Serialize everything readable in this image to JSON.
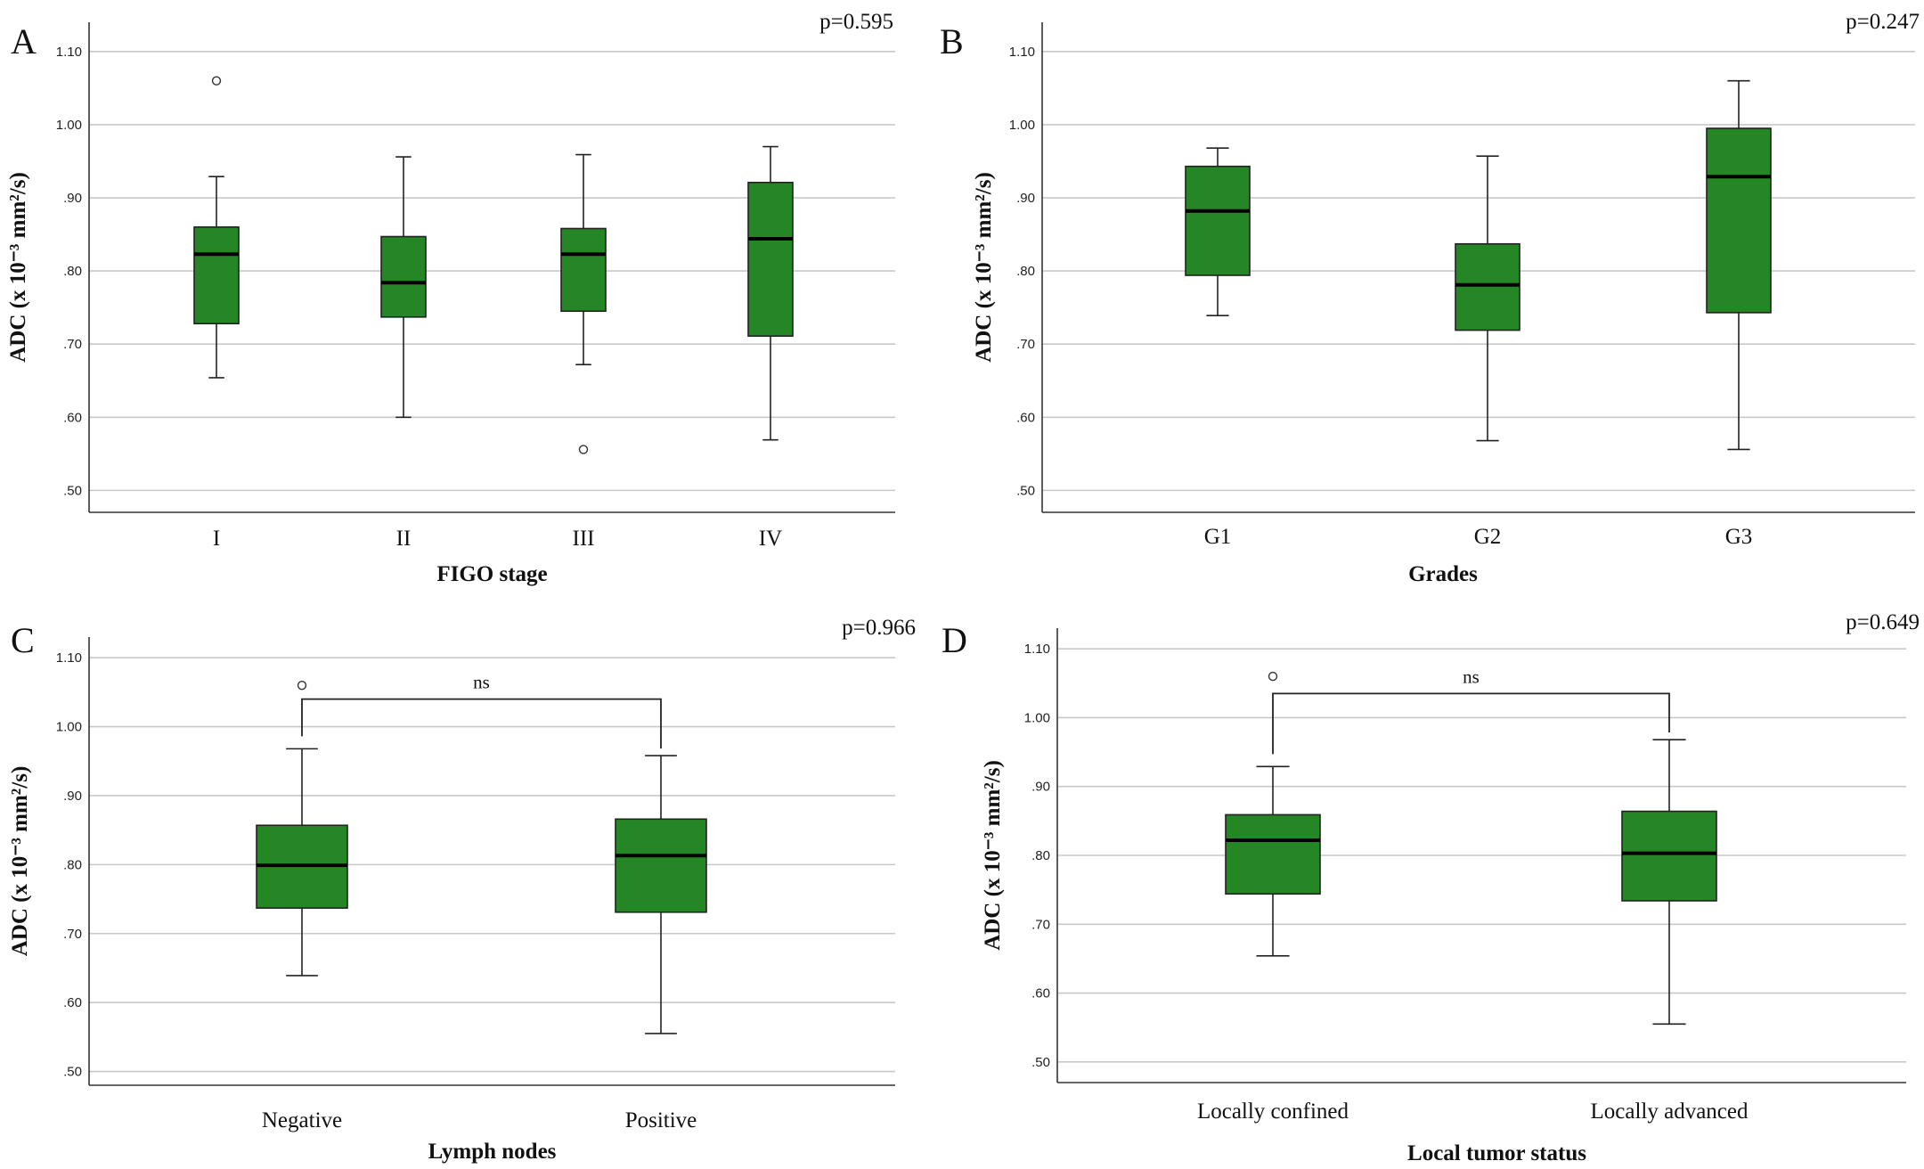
{
  "chart_data": [
    {
      "type": "box",
      "panel": "A",
      "p_value": "p=0.595",
      "xlabel": "FIGO stage",
      "ylabel": "ADC (x 10⁻³ mm²/s)",
      "ylim": [
        0.47,
        1.14
      ],
      "yticks": [
        0.5,
        0.6,
        0.7,
        0.8,
        0.9,
        1.0,
        1.1
      ],
      "ytick_labels": [
        ".50",
        ".60",
        ".70",
        ".80",
        ".90",
        "1.00",
        "1.10"
      ],
      "color": "#258625",
      "grid": true,
      "categories": [
        "I",
        "II",
        "III",
        "IV"
      ],
      "boxes": [
        {
          "min": 0.654,
          "q1": 0.728,
          "median": 0.823,
          "q3": 0.86,
          "max": 0.929,
          "outliers": [
            1.06
          ]
        },
        {
          "min": 0.6,
          "q1": 0.737,
          "median": 0.784,
          "q3": 0.847,
          "max": 0.956,
          "outliers": []
        },
        {
          "min": 0.672,
          "q1": 0.745,
          "median": 0.823,
          "q3": 0.858,
          "max": 0.959,
          "outliers": [
            0.556
          ]
        },
        {
          "min": 0.569,
          "q1": 0.711,
          "median": 0.844,
          "q3": 0.921,
          "max": 0.97,
          "outliers": []
        }
      ]
    },
    {
      "type": "box",
      "panel": "B",
      "p_value": "p=0.247",
      "xlabel": "Grades",
      "ylabel": "ADC (x 10⁻³ mm²/s)",
      "ylim": [
        0.47,
        1.14
      ],
      "yticks": [
        0.5,
        0.6,
        0.7,
        0.8,
        0.9,
        1.0,
        1.1
      ],
      "ytick_labels": [
        ".50",
        ".60",
        ".70",
        ".80",
        ".90",
        "1.00",
        "1.10"
      ],
      "color": "#258625",
      "grid": true,
      "categories": [
        "G1",
        "G2",
        "G3"
      ],
      "boxes": [
        {
          "min": 0.739,
          "q1": 0.794,
          "median": 0.882,
          "q3": 0.943,
          "max": 0.968,
          "outliers": []
        },
        {
          "min": 0.568,
          "q1": 0.719,
          "median": 0.781,
          "q3": 0.837,
          "max": 0.957,
          "outliers": []
        },
        {
          "min": 0.556,
          "q1": 0.743,
          "median": 0.929,
          "q3": 0.995,
          "max": 1.06,
          "outliers": []
        }
      ]
    },
    {
      "type": "box",
      "panel": "C",
      "p_value": "p=0.966",
      "xlabel": "Lymph nodes",
      "ylabel": "ADC (x 10⁻³ mm²/s)",
      "ylim": [
        0.48,
        1.13
      ],
      "yticks": [
        0.5,
        0.6,
        0.7,
        0.8,
        0.9,
        1.0,
        1.1
      ],
      "ytick_labels": [
        ".50",
        ".60",
        ".70",
        ".80",
        ".90",
        "1.00",
        "1.10"
      ],
      "color": "#258625",
      "grid": true,
      "categories": [
        "Negative",
        "Positive"
      ],
      "boxes": [
        {
          "min": 0.639,
          "q1": 0.737,
          "median": 0.799,
          "q3": 0.857,
          "max": 0.968,
          "outliers": [
            1.06
          ]
        },
        {
          "min": 0.555,
          "q1": 0.731,
          "median": 0.813,
          "q3": 0.866,
          "max": 0.958,
          "outliers": []
        }
      ],
      "comparison": {
        "label": "ns",
        "between": [
          0,
          1
        ],
        "level": 1.04
      }
    },
    {
      "type": "box",
      "panel": "D",
      "p_value": "p=0.649",
      "xlabel": "Local tumor status",
      "ylabel": "ADC (x 10⁻³ mm²/s)",
      "ylim": [
        0.47,
        1.13
      ],
      "yticks": [
        0.5,
        0.6,
        0.7,
        0.8,
        0.9,
        1.0,
        1.1
      ],
      "ytick_labels": [
        ".50",
        ".60",
        ".70",
        ".80",
        ".90",
        "1.00",
        "1.10"
      ],
      "color": "#258625",
      "grid": true,
      "categories": [
        "Locally confined",
        "Locally advanced"
      ],
      "boxes": [
        {
          "min": 0.654,
          "q1": 0.744,
          "median": 0.822,
          "q3": 0.859,
          "max": 0.929,
          "outliers": [
            1.06
          ]
        },
        {
          "min": 0.555,
          "q1": 0.734,
          "median": 0.803,
          "q3": 0.864,
          "max": 0.968,
          "outliers": []
        }
      ],
      "comparison": {
        "label": "ns",
        "between": [
          0,
          1
        ],
        "level": 1.035
      }
    }
  ]
}
